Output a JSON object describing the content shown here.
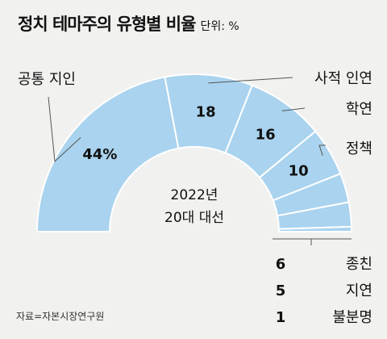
{
  "chart_data": {
    "type": "pie",
    "shape": "half-donut",
    "title": "정치 테마주의 유형별 비율",
    "unit_label": "단위: %",
    "center_label": [
      "2022년",
      "20대 대선"
    ],
    "source": "자료=자본시장연구원",
    "segments": [
      {
        "name": "공통 지인",
        "value": 44,
        "display": "44%",
        "label_inside": true
      },
      {
        "name": "사적 인연",
        "value": 18,
        "display": "18",
        "label_inside": true
      },
      {
        "name": "학연",
        "value": 16,
        "display": "16",
        "label_inside": true
      },
      {
        "name": "정책",
        "value": 10,
        "display": "10",
        "label_inside": true
      },
      {
        "name": "종친",
        "value": 6,
        "display": "6",
        "label_inside": false
      },
      {
        "name": "지연",
        "value": 5,
        "display": "5",
        "label_inside": false
      },
      {
        "name": "불분명",
        "value": 1,
        "display": "1",
        "label_inside": false
      }
    ],
    "colors": {
      "fill": "#a9d3ee",
      "stroke": "#ffffff",
      "leader": "#555555",
      "background": "#f1f1ef"
    }
  }
}
